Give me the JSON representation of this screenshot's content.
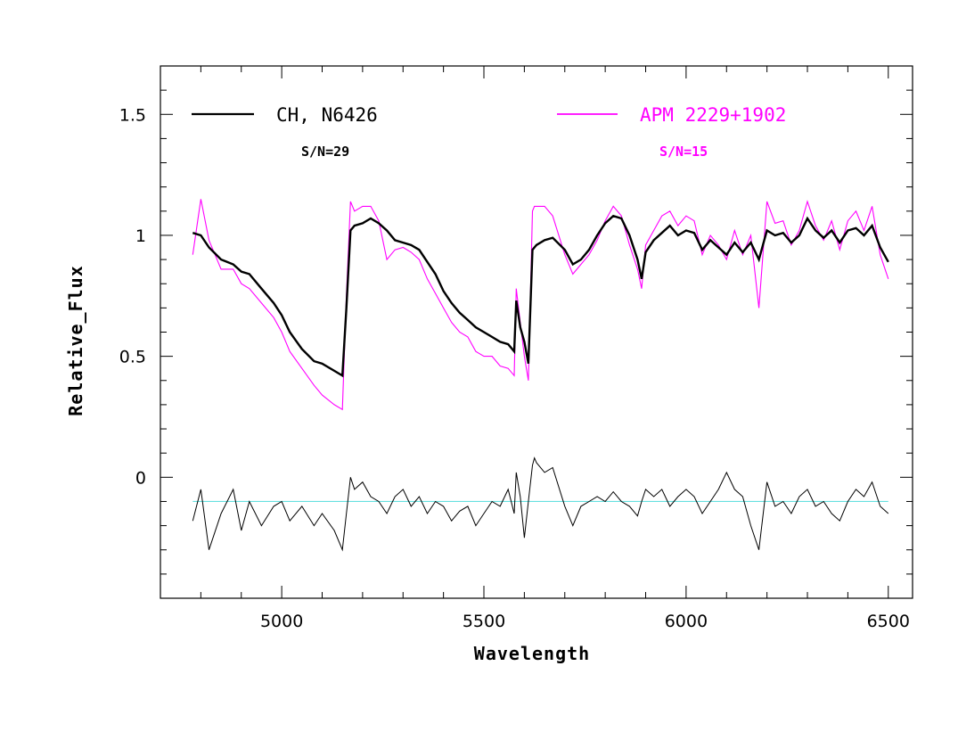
{
  "chart_data": {
    "type": "line",
    "title": "",
    "xlabel": "Wavelength",
    "ylabel": "Relative_Flux",
    "xlim": [
      4700,
      6560
    ],
    "ylim": [
      -0.5,
      1.7
    ],
    "x_major_ticks": [
      5000,
      5500,
      6000,
      6500
    ],
    "x_tick_labels": [
      "5000",
      "5500",
      "6000",
      "6500"
    ],
    "y_major_ticks": [
      0,
      0.5,
      1,
      1.5
    ],
    "y_tick_labels": [
      "0",
      "0.5",
      "1",
      "1.5"
    ],
    "reference_line": {
      "y": -0.1,
      "color": "#66e0e0"
    },
    "legend": {
      "position": "top",
      "entries": [
        {
          "name": "CH, N6426",
          "color": "#000000",
          "sn_label": "S/N=29"
        },
        {
          "name": "APM 2229+1902",
          "color": "#ff00ff",
          "sn_label": "S/N=15"
        }
      ]
    },
    "series": [
      {
        "name": "CH, N6426",
        "color": "#000000",
        "x": [
          4780,
          4800,
          4820,
          4850,
          4880,
          4900,
          4920,
          4950,
          4980,
          5000,
          5020,
          5050,
          5080,
          5100,
          5130,
          5150,
          5160,
          5170,
          5180,
          5200,
          5220,
          5240,
          5260,
          5280,
          5300,
          5320,
          5340,
          5360,
          5380,
          5400,
          5420,
          5440,
          5460,
          5480,
          5500,
          5520,
          5540,
          5560,
          5575,
          5580,
          5590,
          5600,
          5610,
          5620,
          5625,
          5630,
          5650,
          5670,
          5700,
          5720,
          5740,
          5760,
          5780,
          5800,
          5820,
          5840,
          5860,
          5880,
          5890,
          5900,
          5920,
          5940,
          5960,
          5980,
          6000,
          6020,
          6040,
          6060,
          6080,
          6100,
          6120,
          6140,
          6160,
          6180,
          6200,
          6220,
          6240,
          6260,
          6280,
          6300,
          6320,
          6340,
          6360,
          6380,
          6400,
          6420,
          6440,
          6460,
          6480,
          6500
        ],
        "y": [
          1.01,
          1.0,
          0.95,
          0.9,
          0.88,
          0.85,
          0.84,
          0.78,
          0.72,
          0.67,
          0.6,
          0.53,
          0.48,
          0.47,
          0.44,
          0.42,
          0.7,
          1.02,
          1.04,
          1.05,
          1.07,
          1.05,
          1.02,
          0.98,
          0.97,
          0.96,
          0.94,
          0.89,
          0.84,
          0.77,
          0.72,
          0.68,
          0.65,
          0.62,
          0.6,
          0.58,
          0.56,
          0.55,
          0.52,
          0.73,
          0.62,
          0.56,
          0.47,
          0.94,
          0.95,
          0.96,
          0.98,
          0.99,
          0.94,
          0.88,
          0.9,
          0.94,
          1.0,
          1.05,
          1.08,
          1.07,
          1.0,
          0.9,
          0.82,
          0.93,
          0.98,
          1.01,
          1.04,
          1.0,
          1.02,
          1.01,
          0.94,
          0.98,
          0.95,
          0.92,
          0.97,
          0.93,
          0.97,
          0.9,
          1.02,
          1.0,
          1.01,
          0.97,
          1.0,
          1.07,
          1.02,
          0.99,
          1.02,
          0.97,
          1.02,
          1.03,
          1.0,
          1.04,
          0.95,
          0.89
        ]
      },
      {
        "name": "APM 2229+1902",
        "color": "#ff00ff",
        "x": [
          4780,
          4800,
          4820,
          4850,
          4880,
          4900,
          4920,
          4950,
          4980,
          5000,
          5020,
          5050,
          5080,
          5100,
          5130,
          5150,
          5160,
          5170,
          5180,
          5200,
          5220,
          5240,
          5260,
          5280,
          5300,
          5320,
          5340,
          5360,
          5380,
          5400,
          5420,
          5440,
          5460,
          5480,
          5500,
          5520,
          5540,
          5560,
          5575,
          5580,
          5590,
          5600,
          5610,
          5620,
          5625,
          5630,
          5650,
          5670,
          5700,
          5720,
          5740,
          5760,
          5780,
          5800,
          5820,
          5840,
          5860,
          5880,
          5890,
          5900,
          5920,
          5940,
          5960,
          5980,
          6000,
          6020,
          6040,
          6060,
          6080,
          6100,
          6120,
          6140,
          6160,
          6180,
          6200,
          6220,
          6240,
          6260,
          6280,
          6300,
          6320,
          6340,
          6360,
          6380,
          6400,
          6420,
          6440,
          6460,
          6480,
          6500
        ],
        "y": [
          0.92,
          1.15,
          0.98,
          0.86,
          0.86,
          0.8,
          0.78,
          0.72,
          0.66,
          0.6,
          0.52,
          0.45,
          0.38,
          0.34,
          0.3,
          0.28,
          0.75,
          1.14,
          1.1,
          1.12,
          1.12,
          1.06,
          0.9,
          0.94,
          0.95,
          0.93,
          0.9,
          0.82,
          0.76,
          0.7,
          0.64,
          0.6,
          0.58,
          0.52,
          0.5,
          0.5,
          0.46,
          0.45,
          0.42,
          0.78,
          0.64,
          0.5,
          0.4,
          1.1,
          1.12,
          1.12,
          1.12,
          1.08,
          0.92,
          0.84,
          0.88,
          0.92,
          0.98,
          1.06,
          1.12,
          1.08,
          0.96,
          0.86,
          0.78,
          0.96,
          1.02,
          1.08,
          1.1,
          1.04,
          1.08,
          1.06,
          0.92,
          1.0,
          0.96,
          0.9,
          1.02,
          0.92,
          1.0,
          0.7,
          1.14,
          1.05,
          1.06,
          0.96,
          1.02,
          1.14,
          1.04,
          0.98,
          1.06,
          0.94,
          1.06,
          1.1,
          1.02,
          1.12,
          0.92,
          0.82
        ]
      },
      {
        "name": "residual",
        "color": "#000000",
        "x": [
          4780,
          4800,
          4820,
          4850,
          4880,
          4900,
          4920,
          4950,
          4980,
          5000,
          5020,
          5050,
          5080,
          5100,
          5130,
          5150,
          5160,
          5170,
          5180,
          5200,
          5220,
          5240,
          5260,
          5280,
          5300,
          5320,
          5340,
          5360,
          5380,
          5400,
          5420,
          5440,
          5460,
          5480,
          5500,
          5520,
          5540,
          5560,
          5575,
          5580,
          5590,
          5600,
          5610,
          5620,
          5625,
          5630,
          5650,
          5670,
          5700,
          5720,
          5740,
          5760,
          5780,
          5800,
          5820,
          5840,
          5860,
          5880,
          5890,
          5900,
          5920,
          5940,
          5960,
          5980,
          6000,
          6020,
          6040,
          6060,
          6080,
          6100,
          6120,
          6140,
          6160,
          6180,
          6200,
          6220,
          6240,
          6260,
          6280,
          6300,
          6320,
          6340,
          6360,
          6380,
          6400,
          6420,
          6440,
          6460,
          6480,
          6500
        ],
        "y": [
          -0.18,
          -0.05,
          -0.3,
          -0.15,
          -0.05,
          -0.22,
          -0.1,
          -0.2,
          -0.12,
          -0.1,
          -0.18,
          -0.12,
          -0.2,
          -0.15,
          -0.22,
          -0.3,
          -0.15,
          0.0,
          -0.05,
          -0.02,
          -0.08,
          -0.1,
          -0.15,
          -0.08,
          -0.05,
          -0.12,
          -0.08,
          -0.15,
          -0.1,
          -0.12,
          -0.18,
          -0.14,
          -0.12,
          -0.2,
          -0.15,
          -0.1,
          -0.12,
          -0.05,
          -0.15,
          0.02,
          -0.08,
          -0.25,
          -0.1,
          0.05,
          0.08,
          0.06,
          0.02,
          0.04,
          -0.12,
          -0.2,
          -0.12,
          -0.1,
          -0.08,
          -0.1,
          -0.06,
          -0.1,
          -0.12,
          -0.16,
          -0.1,
          -0.05,
          -0.08,
          -0.05,
          -0.12,
          -0.08,
          -0.05,
          -0.08,
          -0.15,
          -0.1,
          -0.05,
          0.02,
          -0.05,
          -0.08,
          -0.2,
          -0.3,
          -0.02,
          -0.12,
          -0.1,
          -0.15,
          -0.08,
          -0.05,
          -0.12,
          -0.1,
          -0.15,
          -0.18,
          -0.1,
          -0.05,
          -0.08,
          -0.02,
          -0.12,
          -0.15
        ]
      }
    ]
  }
}
